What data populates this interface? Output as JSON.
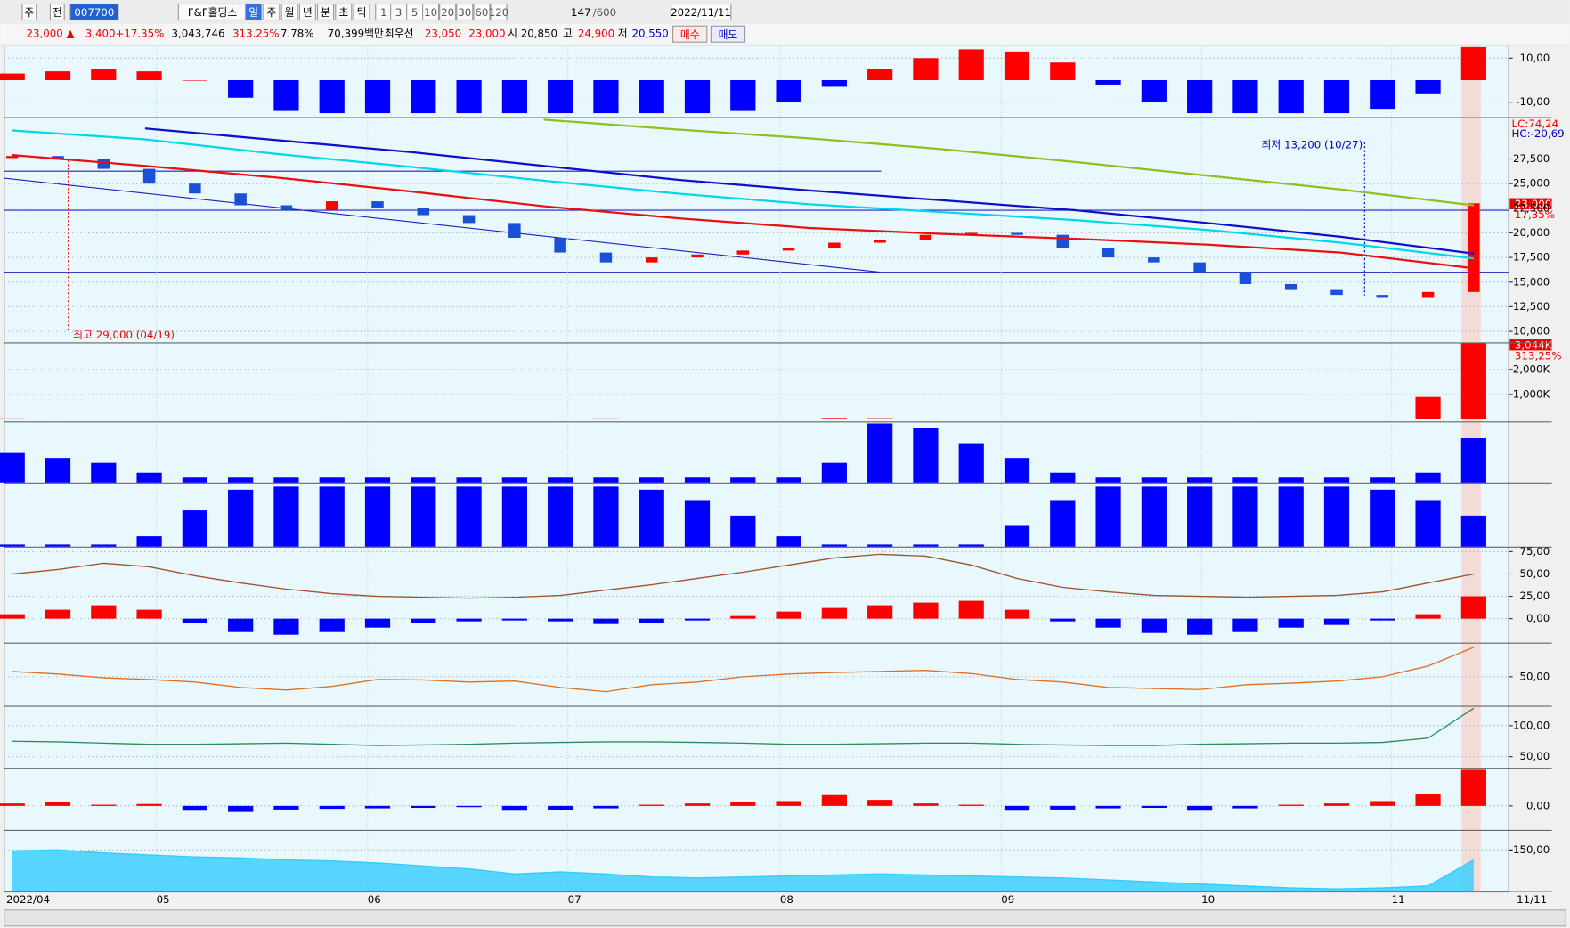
{
  "toolbar": {
    "buttons": [
      "주",
      "전"
    ],
    "code": "007700",
    "name": "F&F홀딩스",
    "periods": [
      "일",
      "주",
      "월",
      "년",
      "분",
      "초",
      "틱"
    ],
    "intervals": [
      "1",
      "3",
      "5",
      "10",
      "20",
      "30",
      "60",
      "120"
    ],
    "count": "147",
    "total": "/600",
    "date": "2022/11/11"
  },
  "info_bar": {
    "price": "23,000 ▲",
    "change": "3,400",
    "change_rate": "+17.35%",
    "volume": "3,043,746",
    "volume_rate": "313.25%",
    "turnover": "7.78%",
    "amount": "70,399백만",
    "best_label": "최우선",
    "ask": "23,050",
    "bid": "23,000",
    "open_label": "시",
    "open": "20,850",
    "high_label": "고",
    "high": "24,900",
    "low_label": "저",
    "low": "20,550",
    "buy": "매수",
    "sell": "매도"
  },
  "panels": [
    {
      "type": "bar",
      "ylim": [
        -16.8,
        15.5
      ],
      "yticks": [
        {
          "value": 10,
          "label": "10,00"
        },
        {
          "value": -10,
          "label": "-10,00"
        }
      ],
      "bars": {
        "color": "#ff0000",
        "neg_color": "#0000ff",
        "values": [
          3,
          4,
          5,
          4,
          0,
          -8,
          -14,
          -15,
          -15,
          -15,
          -15,
          -15,
          -15,
          -15,
          -15,
          -15,
          -14,
          -10,
          -3,
          5,
          10,
          14,
          13,
          8,
          -2,
          -10,
          -15,
          -15,
          -15,
          -15,
          -13,
          -6,
          15
        ]
      }
    },
    {
      "type": "candle",
      "ylim": [
        8880,
        31650
      ],
      "yticks": [
        {
          "value": 27500,
          "label": "27,500"
        },
        {
          "value": 25000,
          "label": "25,000"
        },
        {
          "value": 22500,
          "label": "22,500"
        },
        {
          "value": 20000,
          "label": "20,000"
        },
        {
          "value": 17500,
          "label": "17,500"
        },
        {
          "value": 15000,
          "label": "15,000"
        },
        {
          "value": 12500,
          "label": "12,500"
        },
        {
          "value": 10000,
          "label": "10,000"
        }
      ],
      "candles": {
        "color": "#ff0000",
        "neg_color": "#1a4fd8",
        "values": [
          27800,
          27500,
          26500,
          25000,
          24000,
          22800,
          22300,
          23200,
          22500,
          21800,
          21000,
          19500,
          18000,
          17000,
          17500,
          17800,
          18200,
          18500,
          19000,
          19300,
          19800,
          20000,
          19800,
          18500,
          17500,
          17000,
          16000,
          14800,
          14200,
          13700,
          13400,
          14000,
          23000
        ]
      },
      "series": [
        {
          "color": "#1010c8",
          "values": [
            null,
            30600,
            29400,
            28200,
            26800,
            25400,
            24300,
            23300,
            22300,
            21000,
            19600,
            17900
          ]
        },
        {
          "color": "#00d8e8",
          "values": [
            30400,
            29500,
            28000,
            26700,
            25300,
            24000,
            22900,
            22100,
            21300,
            20300,
            19000,
            17400
          ]
        },
        {
          "color": "#8cc020",
          "values": [
            null,
            null,
            null,
            null,
            31500,
            30500,
            29600,
            28500,
            27200,
            25800,
            24400,
            22800
          ]
        },
        {
          "color": "#e81010",
          "values": [
            27900,
            26800,
            25600,
            24200,
            22700,
            21500,
            20500,
            19900,
            19400,
            18800,
            18000,
            16400
          ]
        }
      ],
      "annotations": [
        "최고 29,000 (04/19)",
        "최저 13,200 (10/27)"
      ],
      "tags": {
        "lc": "LC:74,24",
        "hc": "HC:-20,69",
        "last": "23,000",
        "rate": "17,35%"
      }
    },
    {
      "type": "bar",
      "ylim": [
        -80000,
        3040000
      ],
      "yticks": [
        {
          "value": 2000000,
          "label": "2,000K"
        },
        {
          "value": 1000000,
          "label": "1,000K"
        }
      ],
      "bars": {
        "color": "#ff0000",
        "neg_color": "#ff0000",
        "values": [
          40000,
          35000,
          30000,
          30000,
          28000,
          30000,
          25000,
          35000,
          30000,
          28000,
          25000,
          30000,
          35000,
          40000,
          30000,
          25000,
          20000,
          22000,
          60000,
          50000,
          30000,
          25000,
          20000,
          30000,
          28000,
          25000,
          30000,
          35000,
          30000,
          25000,
          30000,
          900000,
          3043746
        ]
      },
      "tags": {
        "last": "3,044K",
        "rate": "313,25%"
      }
    },
    {
      "type": "bar",
      "ylim": [
        0,
        60
      ],
      "bars": {
        "color": "#0000ff",
        "neg_color": "#0000ff",
        "values": [
          30,
          25,
          20,
          10,
          5,
          5,
          5,
          5,
          5,
          5,
          5,
          5,
          5,
          5,
          5,
          5,
          5,
          5,
          20,
          60,
          55,
          40,
          25,
          10,
          5,
          5,
          5,
          5,
          5,
          5,
          5,
          10,
          45
        ]
      }
    },
    {
      "type": "bar",
      "ylim": [
        0,
        60
      ],
      "bars": {
        "color": "#0000ff",
        "neg_color": "#0000ff",
        "values": [
          2,
          2,
          2,
          10,
          35,
          55,
          58,
          58,
          58,
          58,
          58,
          58,
          58,
          58,
          55,
          45,
          30,
          10,
          2,
          2,
          2,
          2,
          20,
          45,
          58,
          58,
          58,
          58,
          58,
          58,
          55,
          45,
          30
        ]
      }
    },
    {
      "type": "bar",
      "ylim": [
        -26.9,
        78.4
      ],
      "yticks": [
        {
          "value": 75,
          "label": "75,00"
        },
        {
          "value": 50,
          "label": "50,00"
        },
        {
          "value": 25,
          "label": "25,00"
        },
        {
          "value": 0,
          "label": "0,00"
        }
      ],
      "bars": {
        "color": "#ff0000",
        "neg_color": "#0000ff",
        "values": [
          5,
          10,
          15,
          10,
          -5,
          -15,
          -18,
          -15,
          -10,
          -5,
          -3,
          -2,
          -3,
          -6,
          -5,
          -2,
          3,
          8,
          12,
          15,
          18,
          20,
          10,
          -3,
          -10,
          -16,
          -18,
          -15,
          -10,
          -7,
          -2,
          5,
          25
        ]
      },
      "series": [
        {
          "color": "#a0522d",
          "values": [
            50,
            55,
            62,
            58,
            48,
            40,
            33,
            28,
            25,
            24,
            23,
            24,
            26,
            32,
            38,
            45,
            52,
            60,
            68,
            72,
            70,
            60,
            45,
            35,
            30,
            26,
            25,
            24,
            25,
            26,
            30,
            40,
            50
          ]
        }
      ]
    },
    {
      "type": "line",
      "ylim": [
        -4.4,
        110
      ],
      "yticks": [
        {
          "value": 50,
          "label": "50,00"
        }
      ],
      "series": [
        {
          "color": "#e07020",
          "values": [
            60,
            55,
            48,
            45,
            40,
            30,
            25,
            32,
            45,
            44,
            40,
            42,
            30,
            22,
            35,
            40,
            50,
            55,
            58,
            60,
            62,
            56,
            45,
            40,
            30,
            28,
            26,
            35,
            38,
            42,
            50,
            70,
            105
          ]
        }
      ]
    },
    {
      "type": "line",
      "ylim": [
        32,
        129
      ],
      "yticks": [
        {
          "value": 100,
          "label": "100,00"
        },
        {
          "value": 50,
          "label": "50,00"
        }
      ],
      "series": [
        {
          "color": "#2e8b57",
          "values": [
            75,
            74,
            72,
            70,
            70,
            71,
            72,
            70,
            68,
            69,
            70,
            72,
            73,
            74,
            74,
            73,
            72,
            70,
            70,
            71,
            72,
            72,
            70,
            69,
            68,
            68,
            70,
            71,
            72,
            72,
            73,
            80,
            128
          ]
        }
      ]
    },
    {
      "type": "bar",
      "ylim": [
        -100,
        150
      ],
      "yticks": [
        {
          "value": 0,
          "label": "0,00"
        }
      ],
      "bars": {
        "color": "#ff0000",
        "neg_color": "#0000ff",
        "values": [
          10,
          15,
          5,
          8,
          -20,
          -25,
          -15,
          -12,
          -10,
          -8,
          -5,
          -20,
          -18,
          -10,
          5,
          10,
          15,
          20,
          45,
          25,
          10,
          5,
          -20,
          -15,
          -10,
          -8,
          -20,
          -10,
          5,
          10,
          20,
          50,
          150
        ]
      }
    },
    {
      "type": "area",
      "ylim": [
        -355,
        -60
      ],
      "yticks": [
        {
          "value": -150,
          "label": "-150,00"
        }
      ],
      "series": [
        {
          "color": "#33ccff",
          "values": [
            -155,
            -150,
            -165,
            -175,
            -185,
            -190,
            -200,
            -205,
            -215,
            -230,
            -245,
            -270,
            -260,
            -270,
            -285,
            -290,
            -285,
            -280,
            -275,
            -270,
            -275,
            -280,
            -285,
            -290,
            -300,
            -310,
            -320,
            -330,
            -340,
            -345,
            -340,
            -330,
            -200
          ]
        }
      ]
    }
  ],
  "date_axis": {
    "labels": [
      "2022/04",
      "05",
      "06",
      "07",
      "08",
      "09",
      "10",
      "11",
      "11/11"
    ]
  }
}
